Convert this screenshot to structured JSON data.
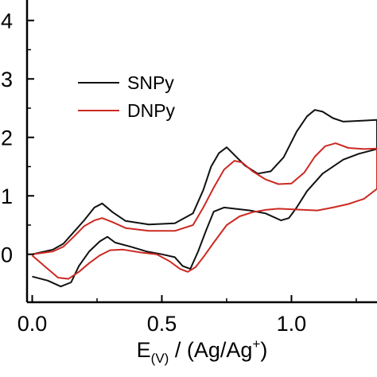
{
  "chart_data": {
    "type": "line",
    "title": "",
    "xlabel": {
      "prefix": "E",
      "subscript": "(V)",
      "middle": " / (Ag/Ag",
      "superscript": "+",
      "suffix": ")"
    },
    "ylabel": "",
    "xlim": [
      -0.02,
      1.33
    ],
    "ylim": [
      -0.82,
      4.35
    ],
    "xticks": [
      {
        "value": 0.0,
        "label": "0.0"
      },
      {
        "value": 0.5,
        "label": "0.5"
      },
      {
        "value": 1.0,
        "label": "1.0"
      }
    ],
    "yticks": [
      {
        "value": 0,
        "label": "0"
      },
      {
        "value": 1,
        "label": "1"
      },
      {
        "value": 2,
        "label": "2"
      },
      {
        "value": 3,
        "label": "3"
      },
      {
        "value": 4,
        "label": "4"
      }
    ],
    "grid": false,
    "legend_position": "top-left",
    "series": [
      {
        "name": "SNPy",
        "color": "#111111",
        "x": [
          0.0,
          0.08,
          0.12,
          0.16,
          0.2,
          0.24,
          0.27,
          0.31,
          0.36,
          0.45,
          0.55,
          0.62,
          0.66,
          0.69,
          0.72,
          0.75,
          0.78,
          0.82,
          0.87,
          0.92,
          0.97,
          1.02,
          1.06,
          1.09,
          1.12,
          1.16,
          1.2,
          1.25,
          1.33,
          1.33,
          1.26,
          1.2,
          1.12,
          1.06,
          1.02,
          0.99,
          0.96,
          0.9,
          0.84,
          0.78,
          0.74,
          0.7,
          0.67,
          0.64,
          0.61,
          0.58,
          0.55,
          0.5,
          0.44,
          0.38,
          0.32,
          0.29,
          0.26,
          0.22,
          0.18,
          0.15,
          0.11,
          0.06,
          0.0
        ],
        "y": [
          0.0,
          0.08,
          0.18,
          0.38,
          0.58,
          0.8,
          0.87,
          0.72,
          0.57,
          0.51,
          0.53,
          0.7,
          1.1,
          1.5,
          1.73,
          1.83,
          1.7,
          1.52,
          1.38,
          1.42,
          1.66,
          2.1,
          2.36,
          2.47,
          2.44,
          2.33,
          2.27,
          2.28,
          2.3,
          1.8,
          1.72,
          1.62,
          1.38,
          1.08,
          0.8,
          0.62,
          0.58,
          0.7,
          0.75,
          0.78,
          0.8,
          0.73,
          0.4,
          0.05,
          -0.25,
          -0.2,
          -0.05,
          0.0,
          0.05,
          0.13,
          0.2,
          0.3,
          0.22,
          0.05,
          -0.2,
          -0.48,
          -0.55,
          -0.45,
          -0.38
        ]
      },
      {
        "name": "DNPy",
        "color": "#cc2a22",
        "x": [
          0.0,
          0.08,
          0.12,
          0.16,
          0.2,
          0.24,
          0.27,
          0.31,
          0.36,
          0.45,
          0.55,
          0.62,
          0.66,
          0.7,
          0.74,
          0.78,
          0.81,
          0.85,
          0.9,
          0.95,
          1.0,
          1.05,
          1.09,
          1.13,
          1.17,
          1.22,
          1.28,
          1.33,
          1.33,
          1.28,
          1.22,
          1.16,
          1.1,
          1.05,
          1.0,
          0.95,
          0.9,
          0.85,
          0.8,
          0.75,
          0.7,
          0.66,
          0.63,
          0.6,
          0.57,
          0.53,
          0.48,
          0.42,
          0.35,
          0.3,
          0.26,
          0.22,
          0.18,
          0.14,
          0.1,
          0.06,
          0.0
        ],
        "y": [
          0.0,
          0.05,
          0.13,
          0.3,
          0.48,
          0.58,
          0.62,
          0.55,
          0.45,
          0.4,
          0.4,
          0.5,
          0.8,
          1.14,
          1.45,
          1.6,
          1.57,
          1.42,
          1.28,
          1.2,
          1.21,
          1.4,
          1.67,
          1.85,
          1.9,
          1.82,
          1.8,
          1.81,
          1.12,
          0.95,
          0.86,
          0.8,
          0.75,
          0.76,
          0.77,
          0.78,
          0.76,
          0.72,
          0.65,
          0.5,
          0.2,
          -0.05,
          -0.22,
          -0.3,
          -0.25,
          -0.12,
          0.0,
          0.03,
          0.08,
          0.07,
          -0.02,
          -0.15,
          -0.3,
          -0.42,
          -0.4,
          -0.25,
          -0.02
        ]
      }
    ]
  }
}
